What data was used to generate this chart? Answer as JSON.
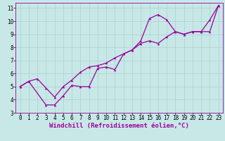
{
  "background_color": "#c8e8e8",
  "line_color": "#990099",
  "grid_color": "#aacfcf",
  "xlabel": "Windchill (Refroidissement éolien,°C)",
  "xlim": [
    -0.5,
    23.5
  ],
  "ylim": [
    3,
    11.4
  ],
  "xticks": [
    0,
    1,
    2,
    3,
    4,
    5,
    6,
    7,
    8,
    9,
    10,
    11,
    12,
    13,
    14,
    15,
    16,
    17,
    18,
    19,
    20,
    21,
    22,
    23
  ],
  "yticks": [
    3,
    4,
    5,
    6,
    7,
    8,
    9,
    10,
    11
  ],
  "line1_x": [
    0,
    1,
    3,
    4,
    5,
    6,
    7,
    8,
    9,
    10,
    11,
    12,
    13,
    14,
    15,
    16,
    17,
    18,
    19,
    20,
    21,
    22,
    23
  ],
  "line1_y": [
    5.0,
    5.4,
    3.6,
    3.6,
    4.3,
    5.1,
    5.0,
    5.0,
    6.4,
    6.5,
    6.3,
    7.5,
    7.8,
    8.5,
    10.2,
    10.5,
    10.1,
    9.2,
    9.0,
    9.2,
    9.2,
    10.1,
    11.2
  ],
  "line2_x": [
    0,
    1,
    2,
    3,
    4,
    5,
    6,
    7,
    8,
    9,
    10,
    11,
    12,
    13,
    14,
    15,
    16,
    17,
    18,
    19,
    20,
    21,
    22,
    23
  ],
  "line2_y": [
    5.0,
    5.4,
    5.6,
    4.9,
    4.2,
    5.0,
    5.5,
    6.1,
    6.5,
    6.6,
    6.8,
    7.2,
    7.5,
    7.8,
    8.3,
    8.5,
    8.3,
    8.8,
    9.2,
    9.0,
    9.2,
    9.2,
    9.2,
    11.2
  ],
  "font_family": "monospace",
  "xlabel_fontsize": 6.5,
  "tick_fontsize": 5.5,
  "marker": "^",
  "marker_size": 2.5,
  "linewidth": 0.9
}
